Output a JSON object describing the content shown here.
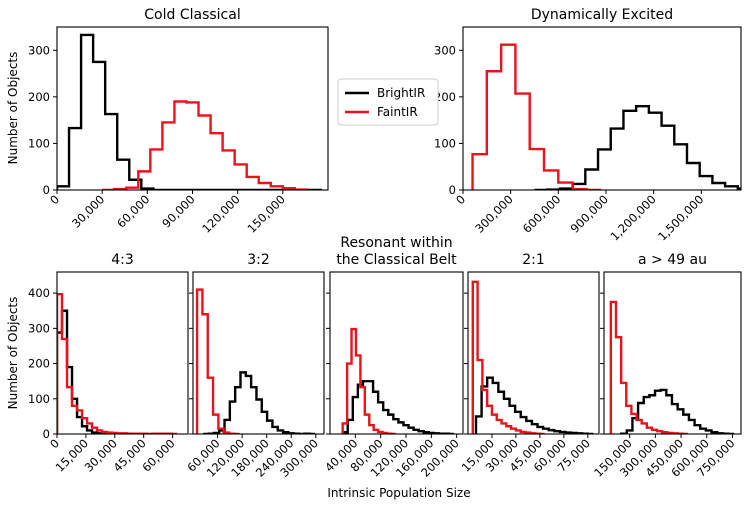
{
  "chart_data": {
    "type": "histogram",
    "xlabel": "Intrinsic Population Size",
    "ylabel": "Number of Objects",
    "legend": {
      "position": "center-top",
      "entries": [
        {
          "name": "BrightIR",
          "color": "#000000"
        },
        {
          "name": "FaintIR",
          "color": "#e8141b"
        }
      ]
    },
    "panels": [
      {
        "id": "cold",
        "title": [
          "Cold Classical"
        ],
        "xlim": [
          0,
          180000
        ],
        "ylim": [
          0,
          350
        ],
        "xticks": [
          0,
          30000,
          60000,
          90000,
          120000,
          150000
        ],
        "xticklabels": [
          "0",
          "30,000",
          "60,000",
          "90,000",
          "120,000",
          "150,000"
        ],
        "yticks": [
          0,
          100,
          200,
          300
        ],
        "yticklabels": [
          "0",
          "100",
          "200",
          "300"
        ],
        "series": [
          {
            "name": "BrightIR",
            "color": "#000000",
            "bin_start": 0,
            "bin_width": 8000,
            "values": [
              8,
              133,
              333,
              275,
              163,
              65,
              22,
              3,
              0,
              0,
              0,
              0,
              0,
              0,
              0,
              0,
              0,
              0,
              0,
              0,
              0,
              0
            ]
          },
          {
            "name": "FaintIR",
            "color": "#e8141b",
            "bin_start": 30000,
            "bin_width": 8000,
            "values": [
              0,
              2,
              5,
              40,
              87,
              145,
              190,
              188,
              160,
              122,
              85,
              55,
              28,
              15,
              8,
              4,
              1
            ]
          }
        ]
      },
      {
        "id": "excited",
        "title": [
          "Dynamically Excited"
        ],
        "xlim": [
          0,
          1750000
        ],
        "ylim": [
          0,
          350
        ],
        "xticks": [
          0,
          300000,
          600000,
          900000,
          1200000,
          1500000
        ],
        "xticklabels": [
          "0",
          "300,000",
          "600,000",
          "900,000",
          "1,200,000",
          "1,500,000"
        ],
        "yticks": [
          0,
          100,
          200,
          300
        ],
        "yticklabels": [
          "0",
          "100",
          "200",
          "300"
        ],
        "series": [
          {
            "name": "BrightIR",
            "color": "#000000",
            "bin_start": 450000,
            "bin_width": 80000,
            "values": [
              0,
              1,
              3,
              13,
              44,
              87,
              132,
              170,
              180,
              166,
              138,
              98,
              58,
              30,
              15,
              8,
              3
            ]
          },
          {
            "name": "FaintIR",
            "color": "#e8141b",
            "bin_start": 60000,
            "bin_width": 90000,
            "values": [
              77,
              255,
              312,
              207,
              88,
              42,
              16,
              2,
              0
            ]
          }
        ]
      },
      {
        "id": "r43",
        "title": [
          "4:3"
        ],
        "xlim": [
          0,
          68000
        ],
        "ylim": [
          0,
          460
        ],
        "xticks": [
          0,
          15000,
          30000,
          45000,
          60000
        ],
        "xticklabels": [
          "0",
          "15,000",
          "30,000",
          "45,000",
          "60,000"
        ],
        "yticks": [
          0,
          100,
          200,
          300,
          400
        ],
        "yticklabels": [
          "0",
          "100",
          "200",
          "300",
          "400"
        ],
        "series": [
          {
            "name": "BrightIR",
            "color": "#000000",
            "bin_start": 0,
            "bin_width": 2600,
            "values": [
              288,
              350,
              190,
              100,
              48,
              22,
              10,
              4,
              2,
              1,
              0
            ]
          },
          {
            "name": "FaintIR",
            "color": "#e8141b",
            "bin_start": 0,
            "bin_width": 2600,
            "values": [
              397,
              270,
              133,
              80,
              67,
              45,
              30,
              18,
              10,
              6,
              4,
              3,
              2,
              2,
              1,
              1,
              1,
              1,
              0,
              1,
              1,
              1,
              1,
              0
            ]
          }
        ]
      },
      {
        "id": "r32",
        "title": [
          "3:2"
        ],
        "xlim": [
          0,
          320000
        ],
        "ylim": [
          0,
          460
        ],
        "xticks": [
          60000,
          120000,
          180000,
          240000,
          300000
        ],
        "xticklabels": [
          "60,000",
          "120,000",
          "180,000",
          "240,000",
          "300,000"
        ],
        "yticks": [
          0,
          100,
          200,
          300,
          400
        ],
        "yticklabels": [
          "0",
          "100",
          "200",
          "300",
          "400"
        ],
        "series": [
          {
            "name": "BrightIR",
            "color": "#000000",
            "bin_start": 25000,
            "bin_width": 13000,
            "values": [
              0,
              1,
              3,
              10,
              40,
              92,
              133,
              175,
              165,
              133,
              98,
              63,
              38,
              20,
              10,
              5,
              2,
              1,
              0,
              1,
              0
            ]
          },
          {
            "name": "FaintIR",
            "color": "#e8141b",
            "bin_start": 10000,
            "bin_width": 13000,
            "values": [
              410,
              340,
              160,
              55,
              15,
              4,
              1,
              0
            ]
          }
        ]
      },
      {
        "id": "classical",
        "title": [
          "Resonant within",
          "the Classical Belt"
        ],
        "xlim": [
          0,
          210000
        ],
        "ylim": [
          0,
          460
        ],
        "xticks": [
          40000,
          80000,
          120000,
          160000,
          200000
        ],
        "xticklabels": [
          "40,000",
          "80,000",
          "120,000",
          "160,000",
          "200,000"
        ],
        "yticks": [
          0,
          100,
          200,
          300,
          400
        ],
        "yticklabels": [
          "0",
          "100",
          "200",
          "300",
          "400"
        ],
        "series": [
          {
            "name": "BrightIR",
            "color": "#000000",
            "bin_start": 20000,
            "bin_width": 8000,
            "values": [
              5,
              40,
              105,
              140,
              150,
              150,
              120,
              90,
              68,
              55,
              42,
              33,
              25,
              18,
              12,
              8,
              5,
              3,
              2,
              1,
              1,
              0
            ]
          },
          {
            "name": "FaintIR",
            "color": "#e8141b",
            "bin_start": 20000,
            "bin_width": 7000,
            "values": [
              30,
              200,
              298,
              223,
              133,
              55,
              25,
              12,
              6,
              3,
              1,
              0
            ]
          }
        ]
      },
      {
        "id": "r21",
        "title": [
          "2:1"
        ],
        "xlim": [
          0,
          82000
        ],
        "ylim": [
          0,
          460
        ],
        "xticks": [
          15000,
          30000,
          45000,
          60000,
          75000
        ],
        "xticklabels": [
          "15,000",
          "30,000",
          "45,000",
          "60,000",
          "75,000"
        ],
        "yticks": [
          0,
          100,
          200,
          300,
          400
        ],
        "yticklabels": [
          "0",
          "100",
          "200",
          "300",
          "400"
        ],
        "series": [
          {
            "name": "BrightIR",
            "color": "#000000",
            "bin_start": 5000,
            "bin_width": 3500,
            "values": [
              50,
              135,
              160,
              145,
              120,
              100,
              80,
              63,
              48,
              37,
              28,
              20,
              15,
              11,
              8,
              6,
              4,
              3,
              2,
              1,
              0
            ]
          },
          {
            "name": "FaintIR",
            "color": "#e8141b",
            "bin_start": 3000,
            "bin_width": 3000,
            "values": [
              432,
              210,
              125,
              80,
              55,
              40,
              30,
              22,
              15,
              10,
              6,
              4,
              2,
              1,
              0
            ]
          }
        ]
      },
      {
        "id": "a49",
        "title": [
          "a > 49 au"
        ],
        "xlim": [
          0,
          800000
        ],
        "ylim": [
          0,
          460
        ],
        "xticks": [
          150000,
          300000,
          450000,
          600000,
          750000
        ],
        "xticklabels": [
          "150,000",
          "300,000",
          "450,000",
          "600,000",
          "750,000"
        ],
        "yticks": [
          0,
          100,
          200,
          300,
          400
        ],
        "yticklabels": [
          "0",
          "100",
          "200",
          "300",
          "400"
        ],
        "series": [
          {
            "name": "BrightIR",
            "color": "#000000",
            "bin_start": 100000,
            "bin_width": 33000,
            "values": [
              1,
              10,
              45,
              88,
              105,
              110,
              123,
              125,
              110,
              85,
              70,
              55,
              40,
              25,
              15,
              10,
              5,
              2,
              1,
              0
            ]
          },
          {
            "name": "FaintIR",
            "color": "#e8141b",
            "bin_start": 40000,
            "bin_width": 30000,
            "values": [
              375,
              275,
              145,
              80,
              57,
              40,
              30,
              18,
              12,
              8,
              5,
              3,
              2,
              1,
              0
            ]
          }
        ]
      }
    ]
  }
}
